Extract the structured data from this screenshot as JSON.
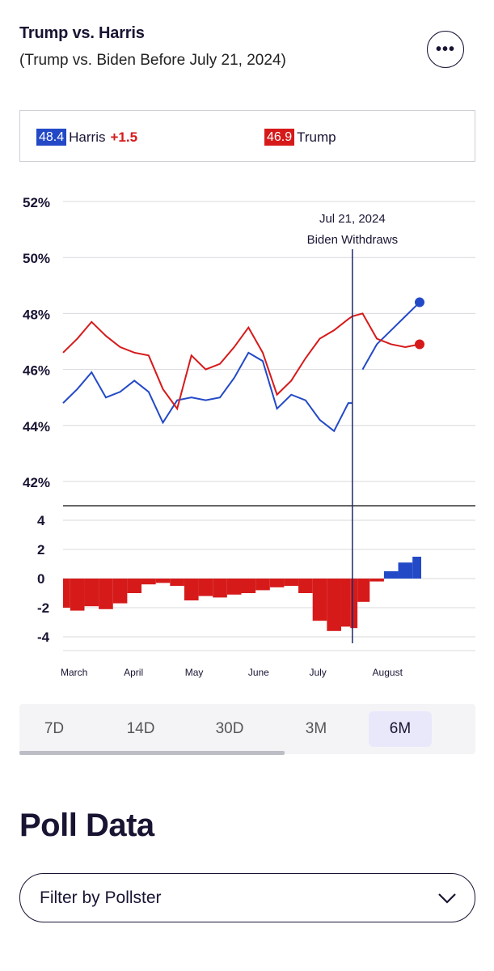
{
  "header": {
    "title": "Trump vs. Harris",
    "subtitle": "(Trump vs. Biden Before July 21, 2024)",
    "more_icon": "ellipsis-icon",
    "more_label": "•••"
  },
  "legend": {
    "harris": {
      "value": "48.4",
      "name": "Harris",
      "lead": "+1.5"
    },
    "trump": {
      "value": "46.9",
      "name": "Trump"
    }
  },
  "colors": {
    "dem": "#2349c7",
    "rep": "#d61a1a",
    "ink": "#1a1433"
  },
  "chart_data": [
    {
      "type": "line",
      "y_ticks": [
        "52%",
        "50%",
        "48%",
        "46%",
        "44%",
        "42%"
      ],
      "ylim": [
        42,
        52
      ],
      "x_ticks": [
        "March",
        "April",
        "May",
        "June",
        "July",
        "August"
      ],
      "x": [
        "Mar 1",
        "Mar 8",
        "Mar 15",
        "Mar 22",
        "Mar 29",
        "Apr 5",
        "Apr 12",
        "Apr 19",
        "Apr 26",
        "May 3",
        "May 10",
        "May 17",
        "May 24",
        "May 31",
        "Jun 7",
        "Jun 14",
        "Jun 21",
        "Jun 28",
        "Jul 5",
        "Jul 12",
        "Jul 19",
        "Jul 21",
        "Jul 26",
        "Aug 2",
        "Aug 9",
        "Aug 16",
        "Aug 23"
      ],
      "series": [
        {
          "name": "Harris",
          "color": "#2349c7",
          "values": [
            44.8,
            45.3,
            45.9,
            45.0,
            45.2,
            45.6,
            45.2,
            44.1,
            44.9,
            45.0,
            44.9,
            45.0,
            45.7,
            46.6,
            46.3,
            44.6,
            45.1,
            44.9,
            44.2,
            43.8,
            44.8,
            44.8,
            46.0,
            46.9,
            47.4,
            47.9,
            48.4
          ]
        },
        {
          "name": "Trump",
          "color": "#d61a1a",
          "values": [
            46.6,
            47.1,
            47.7,
            47.2,
            46.8,
            46.6,
            46.5,
            45.3,
            44.6,
            46.5,
            46.0,
            46.2,
            46.8,
            47.5,
            46.6,
            45.1,
            45.6,
            46.4,
            47.1,
            47.4,
            47.8,
            47.9,
            48.0,
            47.1,
            46.9,
            46.8,
            46.9
          ]
        }
      ],
      "annotation": {
        "x": "Jul 21",
        "date": "Jul 21, 2024",
        "text": "Biden Withdraws"
      }
    },
    {
      "type": "bar",
      "y_ticks": [
        "4",
        "2",
        "0",
        "-2",
        "-4"
      ],
      "ylim": [
        -5,
        5
      ],
      "x": [
        "Mar 1",
        "Mar 8",
        "Mar 15",
        "Mar 22",
        "Mar 29",
        "Apr 5",
        "Apr 12",
        "Apr 19",
        "Apr 26",
        "May 3",
        "May 10",
        "May 17",
        "May 24",
        "May 31",
        "Jun 7",
        "Jun 14",
        "Jun 21",
        "Jun 28",
        "Jul 5",
        "Jul 12",
        "Jul 19",
        "Jul 21",
        "Jul 26",
        "Aug 2",
        "Aug 9",
        "Aug 16",
        "Aug 23"
      ],
      "values": [
        -2.0,
        -2.2,
        -1.9,
        -2.1,
        -1.7,
        -1.0,
        -0.4,
        -0.3,
        -0.5,
        -1.5,
        -1.2,
        -1.3,
        -1.1,
        -1.0,
        -0.8,
        -0.6,
        -0.5,
        -1.0,
        -2.9,
        -3.6,
        -3.3,
        -3.4,
        -1.6,
        -0.2,
        0.5,
        1.1,
        1.5
      ]
    }
  ],
  "range_tabs": {
    "items": [
      "7D",
      "14D",
      "30D",
      "3M",
      "6M"
    ],
    "active": "6M"
  },
  "poll_data": {
    "title": "Poll Data",
    "filter_label": "Filter by Pollster",
    "filter_icon": "chevron-down-icon"
  }
}
